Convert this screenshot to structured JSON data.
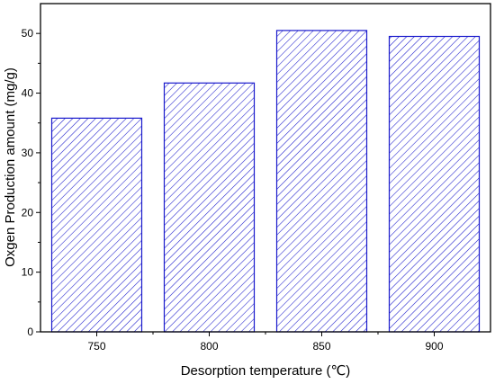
{
  "chart_data": {
    "type": "bar",
    "categories": [
      "750",
      "800",
      "850",
      "900"
    ],
    "values": [
      35.8,
      41.7,
      50.5,
      49.5
    ],
    "xlabel": "Desorption temperature (℃)",
    "ylabel": "Oxgen Production amount (mg/g)",
    "ylim": [
      0,
      55
    ],
    "yticks": [
      "0",
      "10",
      "20",
      "30",
      "40",
      "50"
    ],
    "grid": false,
    "legend": "none",
    "bar_fill": "diagonal-hatch",
    "bar_color": "#1a1acc"
  }
}
